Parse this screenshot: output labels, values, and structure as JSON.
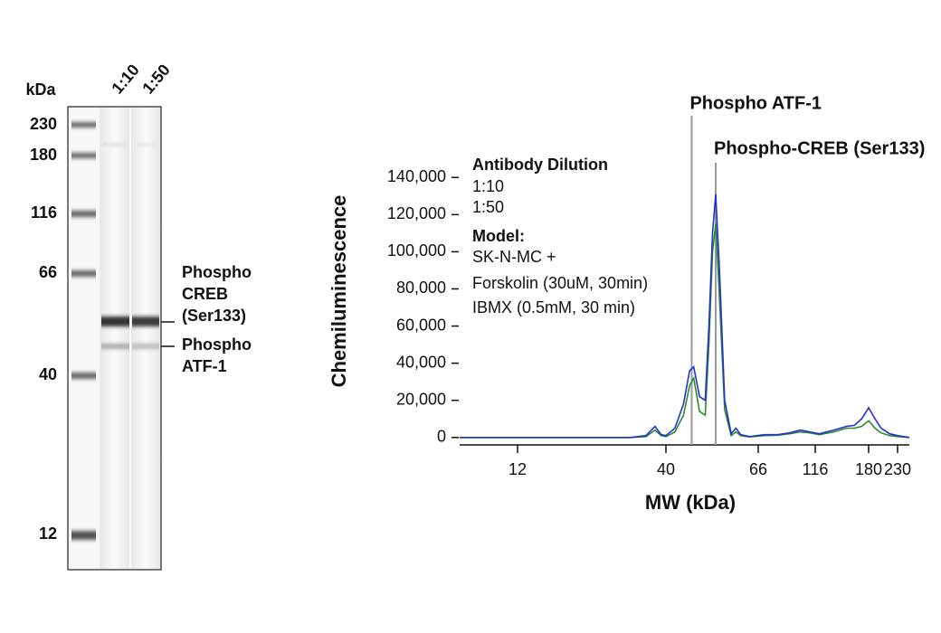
{
  "blot": {
    "unit_label": "kDa",
    "lanes": [
      "1:10",
      "1:50"
    ],
    "markers": [
      "230",
      "180",
      "116",
      "66",
      "40",
      "12"
    ],
    "band_labels": [
      [
        "Phospho",
        "CREB",
        "(Ser133)"
      ],
      [
        "Phospho",
        "ATF-1"
      ]
    ]
  },
  "chart_data": {
    "type": "line",
    "xlabel": "MW (kDa)",
    "ylabel": "Chemiluminescence",
    "x_scale": "migration",
    "xlim": [
      2,
      250
    ],
    "xticks": [
      12,
      40,
      66,
      116,
      180,
      230
    ],
    "ylim": [
      -4000,
      145000
    ],
    "yticks": [
      0,
      {
        "value": 20000,
        "label": "20,000"
      },
      {
        "value": 40000,
        "label": "40,000"
      },
      {
        "value": 60000,
        "label": "60,000"
      },
      {
        "value": 80000,
        "label": "80,000"
      },
      {
        "value": 100000,
        "label": "100,000"
      },
      {
        "value": 120000,
        "label": "120,000"
      },
      {
        "value": 140000,
        "label": "140,000"
      }
    ],
    "x": [
      2,
      10,
      20,
      30,
      34,
      36.6,
      38.5,
      40,
      42,
      44,
      45.5,
      46.5,
      48,
      49.5,
      50.5,
      51.5,
      52.4,
      53.5,
      55,
      57,
      58.5,
      60,
      63,
      70,
      80,
      90,
      100,
      110,
      120,
      135,
      150,
      160,
      170,
      180,
      190,
      200,
      215,
      230,
      250
    ],
    "legend_title": "Antibody Dilution",
    "series": [
      {
        "name": "1:10",
        "color": "#2233cc",
        "values": [
          0,
          0,
          0,
          0,
          1000,
          6000,
          1500,
          1000,
          5000,
          18000,
          36000,
          38000,
          22000,
          20000,
          60000,
          110000,
          131000,
          90000,
          20000,
          2000,
          5000,
          1500,
          500,
          1500,
          1500,
          2500,
          4000,
          3000,
          2000,
          4000,
          6000,
          6500,
          10000,
          16000,
          10000,
          5000,
          2000,
          1000,
          0
        ]
      },
      {
        "name": "1:50",
        "color": "#2a8a2a",
        "values": [
          0,
          0,
          0,
          0,
          500,
          4000,
          1000,
          500,
          3000,
          12000,
          28000,
          32000,
          14000,
          12000,
          50000,
          100000,
          115000,
          75000,
          15000,
          1000,
          3000,
          1000,
          300,
          1000,
          1200,
          2000,
          3000,
          2500,
          1500,
          3000,
          5000,
          5000,
          6000,
          9000,
          5000,
          2500,
          1000,
          500,
          0
        ]
      }
    ],
    "model_lines": [
      "Model:",
      "SK-N-MC  +",
      "Forskolin (30uM, 30min)",
      "IBMX (0.5mM, 30 min)"
    ],
    "annotations": [
      {
        "text": "Phospho ATF-1",
        "x": 46
      },
      {
        "text": "Phospho-CREB (Ser133)",
        "x": 52.4
      }
    ]
  }
}
